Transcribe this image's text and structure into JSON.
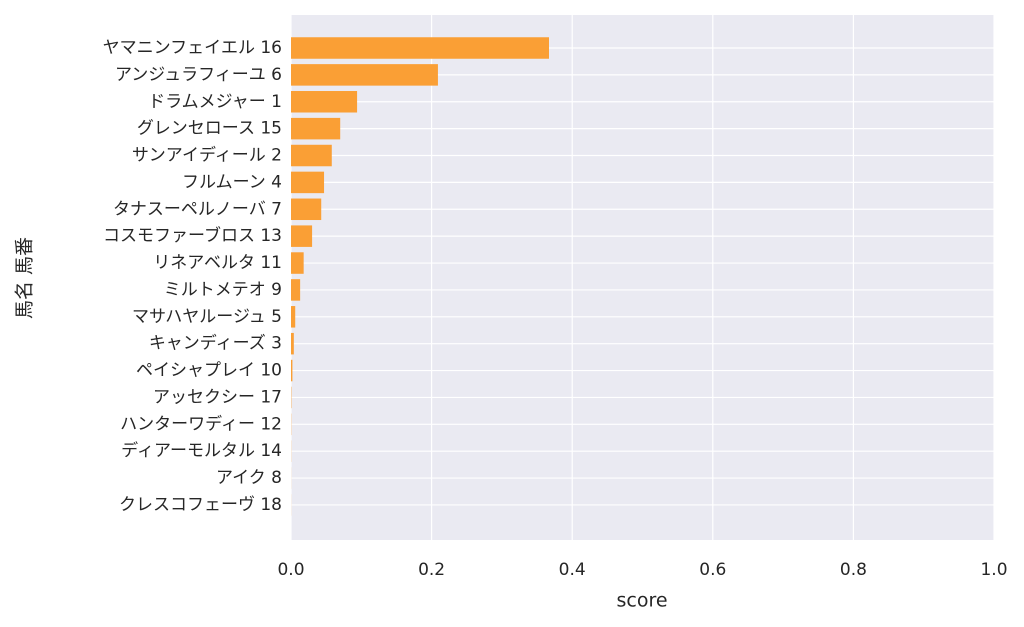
{
  "chart_data": {
    "type": "barh",
    "xlabel": "score",
    "ylabel": "馬名 馬番",
    "categories": [
      "ヤマニンフェイエル 16",
      "アンジュラフィーユ 6",
      "ドラムメジャー 1",
      "グレンセロース 15",
      "サンアイディール 2",
      "フルムーン 4",
      "タナスーペルノーバ 7",
      "コスモファーブロス 13",
      "リネアベルタ 11",
      "ミルトメテオ 9",
      "マサハヤルージュ 5",
      "キャンディーズ 3",
      "ペイシャプレイ 10",
      "アッセクシー 17",
      "ハンターワディー 12",
      "ディアーモルタル 14",
      "アイク 8",
      "クレスコフェーヴ 18"
    ],
    "values": [
      0.367,
      0.209,
      0.094,
      0.07,
      0.058,
      0.047,
      0.043,
      0.03,
      0.018,
      0.013,
      0.006,
      0.004,
      0.002,
      0.0005,
      0.0003,
      0.0002,
      0.0001,
      0.0001
    ],
    "color": "#fa9f35",
    "xlim": [
      0,
      1
    ],
    "xticks": [
      {
        "value": 0,
        "label": "0.0"
      },
      0.2,
      0.4,
      0.6,
      0.8,
      {
        "value": 1,
        "label": "1.0"
      }
    ],
    "grid": true
  }
}
